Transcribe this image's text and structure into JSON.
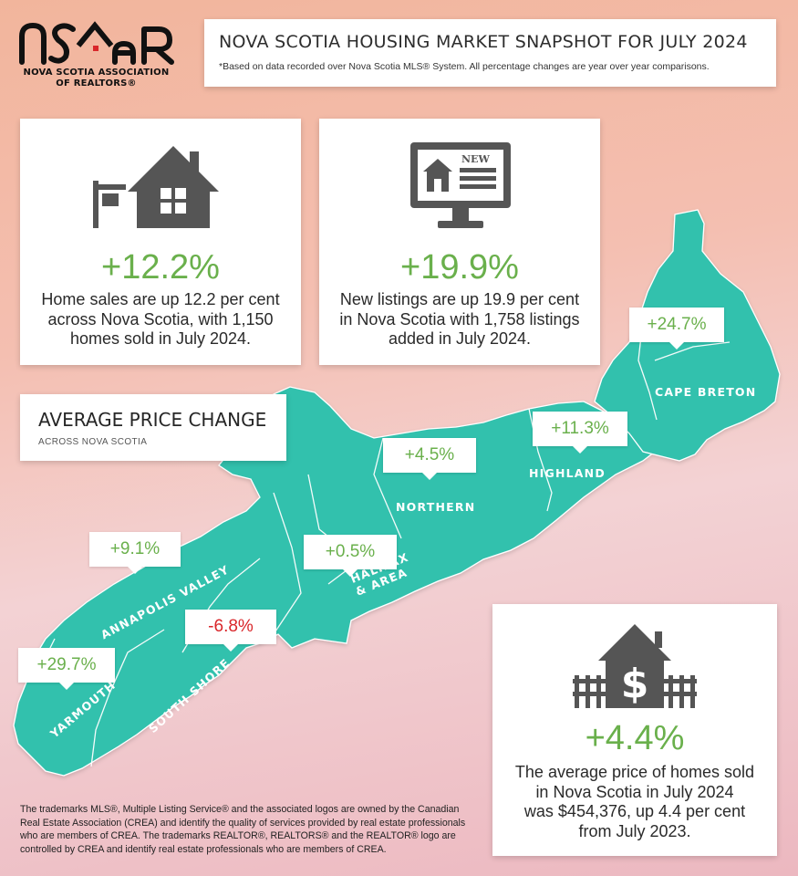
{
  "logo": {
    "wordmark": "nsAR",
    "association_line1": "NOVA SCOTIA ASSOCIATION",
    "association_line2": "OF REALTORS®"
  },
  "header": {
    "title": "NOVA SCOTIA HOUSING MARKET SNAPSHOT FOR JULY 2024",
    "subtitle": "*Based on data recorded over Nova Scotia MLS® System. All percentage changes are year over year comparisons."
  },
  "stats": {
    "sales": {
      "icon": "house-for-sale-icon",
      "pct": "+12.2%",
      "desc_lines": [
        "Home sales are up 12.2 per cent",
        "across Nova Scotia, with 1,150",
        "homes sold in July 2024."
      ]
    },
    "listings": {
      "icon": "monitor-new-listing-icon",
      "pct": "+19.9%",
      "desc_lines": [
        "New listings are up 19.9 per cent",
        "in Nova Scotia with 1,758 listings",
        "added in July 2024."
      ]
    },
    "price": {
      "icon": "house-dollar-icon",
      "pct": "+4.4%",
      "desc_lines": [
        "The average price of homes sold",
        "in Nova Scotia in July 2024",
        "was $454,376, up 4.4 per cent",
        "from July 2023."
      ]
    }
  },
  "average_price": {
    "heading": "AVERAGE PRICE CHANGE",
    "subheading": "ACROSS NOVA SCOTIA"
  },
  "regions": [
    {
      "name": "CAPE BRETON",
      "change": "+24.7%",
      "direction": "up"
    },
    {
      "name": "HIGHLAND",
      "change": "+11.3%",
      "direction": "up"
    },
    {
      "name": "NORTHERN",
      "change": "+4.5%",
      "direction": "up"
    },
    {
      "name": "HALIFAX & AREA",
      "name_lines": [
        "HALIFAX",
        "& AREA"
      ],
      "change": "+0.5%",
      "direction": "up"
    },
    {
      "name": "ANNAPOLIS VALLEY",
      "change": "+9.1%",
      "direction": "up"
    },
    {
      "name": "SOUTH SHORE",
      "change": "-6.8%",
      "direction": "down"
    },
    {
      "name": "YARMOUTH",
      "change": "+29.7%",
      "direction": "up"
    }
  ],
  "colors": {
    "positive": "#6ab04c",
    "negative": "#d9262a",
    "map_fill": "#33c1ad",
    "icon_gray": "#555555"
  },
  "footer": {
    "lines": [
      "The trademarks MLS®, Multiple Listing Service® and the associated logos are owned by the Canadian",
      "Real Estate Association (CREA) and identify the quality of services provided by real estate professionals",
      "who are members of CREA. The trademarks REALTOR®, REALTORS® and the REALTOR® logo are",
      "controlled by CREA and identify real estate professionals who are members of CREA."
    ]
  }
}
